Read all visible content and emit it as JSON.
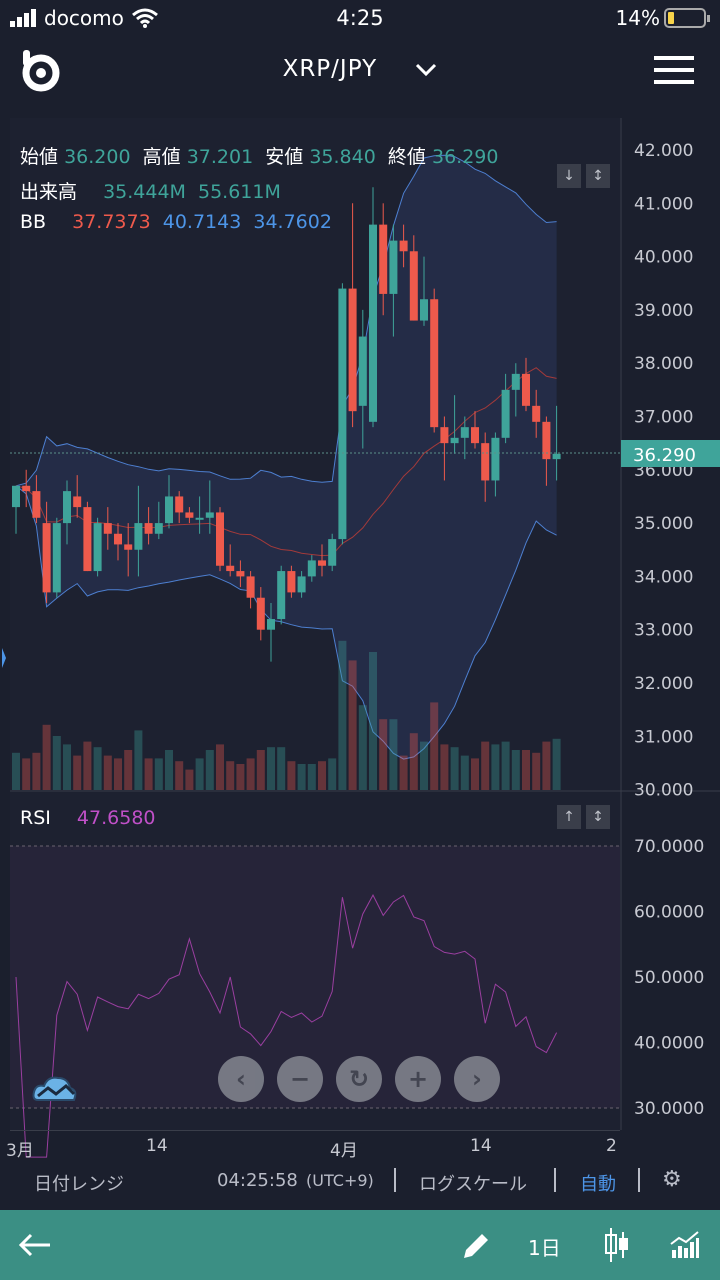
{
  "status": {
    "carrier": "docomo",
    "time": "4:25",
    "battery": "14%"
  },
  "header": {
    "pair": "XRP/JPY"
  },
  "ohlc": {
    "open_label": "始値",
    "open": "36.200",
    "high_label": "高値",
    "high": "37.201",
    "low_label": "安値",
    "low": "35.840",
    "close_label": "終値",
    "close": "36.290"
  },
  "volume": {
    "label": "出来高",
    "v1": "35.444M",
    "v2": "55.611M"
  },
  "bb": {
    "label": "BB",
    "mid": "37.7373",
    "upper": "40.7143",
    "lower": "34.7602"
  },
  "price_axis": [
    "42.000",
    "41.000",
    "40.000",
    "39.000",
    "38.000",
    "37.000",
    "36.000",
    "35.000",
    "34.000",
    "33.000",
    "32.000",
    "31.000",
    "30.000"
  ],
  "current_price": "36.290",
  "rsi": {
    "label": "RSI",
    "value": "47.6580",
    "axis": [
      "70.0000",
      "60.0000",
      "50.0000",
      "40.0000",
      "30.0000"
    ]
  },
  "time_axis": [
    "3月",
    "14",
    "4月",
    "14",
    "2"
  ],
  "toolbar": {
    "date_range": "日付レンジ",
    "clock": "04:25:58",
    "tz": "(UTC+9)",
    "log_scale": "ログスケール",
    "auto": "自動"
  },
  "nav": {
    "interval": "1日"
  },
  "colors": {
    "up": "#3fa49a",
    "down": "#ee5a4c",
    "bb_band": "#4d95e7",
    "rsi_line": "#c050c8",
    "nav_bg": "#3b8f84"
  },
  "chart_data": {
    "type": "candlestick",
    "candles": [
      {
        "o": 35.3,
        "h": 35.7,
        "l": 34.8,
        "c": 35.7
      },
      {
        "o": 35.7,
        "h": 36.0,
        "l": 35.3,
        "c": 35.6
      },
      {
        "o": 35.6,
        "h": 35.9,
        "l": 35.0,
        "c": 35.1
      },
      {
        "o": 35.0,
        "h": 35.4,
        "l": 33.5,
        "c": 33.7
      },
      {
        "o": 33.7,
        "h": 35.1,
        "l": 33.6,
        "c": 35.0
      },
      {
        "o": 35.0,
        "h": 35.8,
        "l": 34.6,
        "c": 35.6
      },
      {
        "o": 35.5,
        "h": 35.9,
        "l": 35.1,
        "c": 35.3
      },
      {
        "o": 35.3,
        "h": 35.4,
        "l": 34.1,
        "c": 34.1
      },
      {
        "o": 34.1,
        "h": 35.1,
        "l": 34.0,
        "c": 35.0
      },
      {
        "o": 35.0,
        "h": 35.3,
        "l": 34.5,
        "c": 34.8
      },
      {
        "o": 34.8,
        "h": 35.0,
        "l": 34.3,
        "c": 34.6
      },
      {
        "o": 34.6,
        "h": 35.0,
        "l": 34.0,
        "c": 34.5
      },
      {
        "o": 34.5,
        "h": 35.7,
        "l": 34.0,
        "c": 35.0
      },
      {
        "o": 35.0,
        "h": 35.3,
        "l": 34.6,
        "c": 34.8
      },
      {
        "o": 34.8,
        "h": 35.4,
        "l": 34.7,
        "c": 35.0
      },
      {
        "o": 35.0,
        "h": 35.9,
        "l": 34.9,
        "c": 35.5
      },
      {
        "o": 35.5,
        "h": 35.6,
        "l": 35.0,
        "c": 35.2
      },
      {
        "o": 35.2,
        "h": 35.3,
        "l": 35.0,
        "c": 35.1
      },
      {
        "o": 35.1,
        "h": 35.5,
        "l": 34.8,
        "c": 35.1
      },
      {
        "o": 35.1,
        "h": 35.8,
        "l": 34.8,
        "c": 35.2
      },
      {
        "o": 35.2,
        "h": 35.3,
        "l": 34.1,
        "c": 34.2
      },
      {
        "o": 34.2,
        "h": 34.6,
        "l": 34.0,
        "c": 34.1
      },
      {
        "o": 34.1,
        "h": 34.3,
        "l": 33.8,
        "c": 34.0
      },
      {
        "o": 34.0,
        "h": 34.1,
        "l": 33.4,
        "c": 33.6
      },
      {
        "o": 33.6,
        "h": 33.8,
        "l": 32.8,
        "c": 33.0
      },
      {
        "o": 33.0,
        "h": 33.5,
        "l": 32.4,
        "c": 33.2
      },
      {
        "o": 33.2,
        "h": 34.2,
        "l": 33.1,
        "c": 34.1
      },
      {
        "o": 34.1,
        "h": 34.2,
        "l": 33.6,
        "c": 33.7
      },
      {
        "o": 33.7,
        "h": 34.1,
        "l": 33.6,
        "c": 34.0
      },
      {
        "o": 34.0,
        "h": 34.4,
        "l": 33.9,
        "c": 34.3
      },
      {
        "o": 34.3,
        "h": 34.6,
        "l": 34.0,
        "c": 34.2
      },
      {
        "o": 34.2,
        "h": 34.8,
        "l": 34.1,
        "c": 34.7
      },
      {
        "o": 34.7,
        "h": 39.5,
        "l": 34.6,
        "c": 39.4
      },
      {
        "o": 39.4,
        "h": 41.0,
        "l": 36.8,
        "c": 37.1
      },
      {
        "o": 37.2,
        "h": 39.0,
        "l": 36.4,
        "c": 38.5
      },
      {
        "o": 36.9,
        "h": 41.3,
        "l": 36.8,
        "c": 40.6
      },
      {
        "o": 40.6,
        "h": 41.0,
        "l": 38.9,
        "c": 39.3
      },
      {
        "o": 39.3,
        "h": 40.6,
        "l": 38.5,
        "c": 40.3
      },
      {
        "o": 40.3,
        "h": 40.6,
        "l": 39.8,
        "c": 40.1
      },
      {
        "o": 40.1,
        "h": 40.4,
        "l": 38.8,
        "c": 38.8
      },
      {
        "o": 38.8,
        "h": 40.0,
        "l": 38.7,
        "c": 39.2
      },
      {
        "o": 39.2,
        "h": 39.4,
        "l": 36.7,
        "c": 36.8
      },
      {
        "o": 36.8,
        "h": 37.0,
        "l": 35.8,
        "c": 36.5
      },
      {
        "o": 36.5,
        "h": 37.4,
        "l": 36.3,
        "c": 36.6
      },
      {
        "o": 36.6,
        "h": 37.0,
        "l": 36.2,
        "c": 36.8
      },
      {
        "o": 36.8,
        "h": 37.1,
        "l": 36.4,
        "c": 36.5
      },
      {
        "o": 36.5,
        "h": 36.7,
        "l": 35.4,
        "c": 35.8
      },
      {
        "o": 35.8,
        "h": 36.7,
        "l": 35.5,
        "c": 36.6
      },
      {
        "o": 36.6,
        "h": 37.8,
        "l": 36.5,
        "c": 37.5
      },
      {
        "o": 37.5,
        "h": 38.0,
        "l": 37.0,
        "c": 37.8
      },
      {
        "o": 37.8,
        "h": 38.1,
        "l": 37.1,
        "c": 37.2
      },
      {
        "o": 37.2,
        "h": 37.5,
        "l": 36.6,
        "c": 36.9
      },
      {
        "o": 36.9,
        "h": 37.0,
        "l": 35.7,
        "c": 36.2
      },
      {
        "o": 36.2,
        "h": 37.2,
        "l": 35.8,
        "c": 36.3
      }
    ]
  }
}
